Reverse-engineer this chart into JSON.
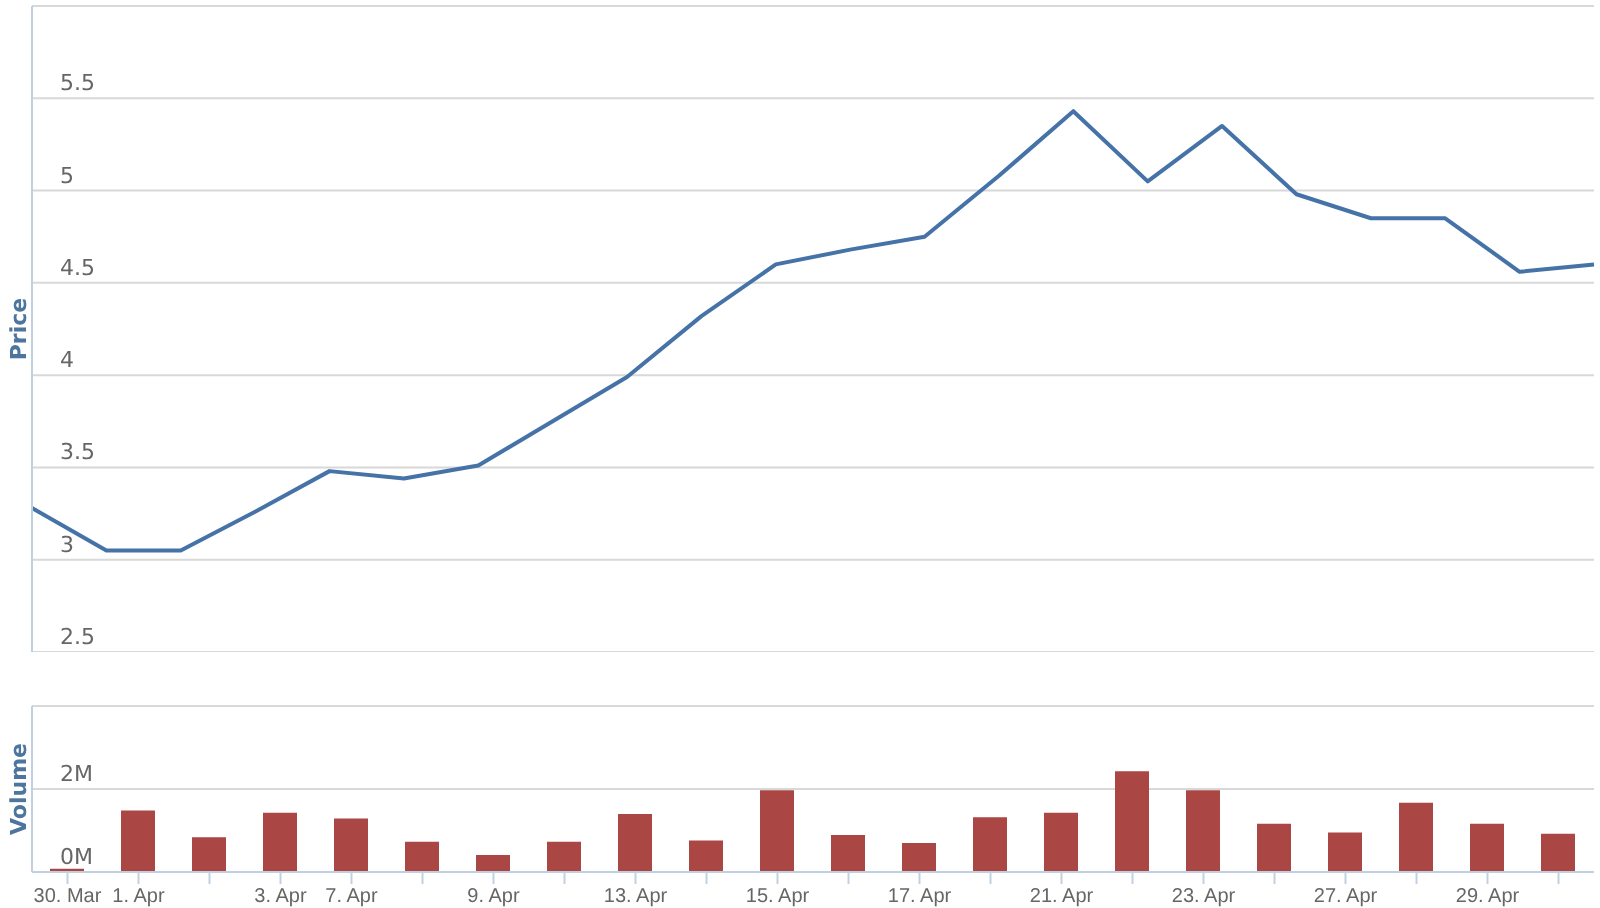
{
  "chart_data": [
    {
      "type": "line",
      "ylabel": "Price",
      "categories": [
        null,
        null,
        null,
        null,
        null,
        null,
        null,
        null,
        null,
        null,
        null,
        null,
        null,
        null,
        null,
        null,
        null,
        null,
        null,
        null,
        null,
        null
      ],
      "series": [
        {
          "color": "#4572a7",
          "values": [
            3.28,
            3.05,
            3.05,
            3.26,
            3.48,
            3.44,
            3.51,
            3.75,
            3.99,
            4.32,
            4.6,
            4.68,
            4.75,
            5.08,
            5.43,
            5.05,
            5.35,
            4.98,
            4.85,
            4.85,
            4.56,
            4.6
          ]
        }
      ],
      "ylim": [
        2.5,
        6
      ],
      "yticks": [
        2.5,
        3,
        3.5,
        4,
        4.5,
        5,
        5.5,
        {
          "value": 6,
          "label": null
        }
      ],
      "grid": "y",
      "tick_labels": "y",
      "legend": false,
      "marker": "none",
      "line_style": "solid"
    },
    {
      "type": "bar",
      "ylabel": "Volume",
      "categories": [
        "30. Mar",
        "1. Apr",
        null,
        "3. Apr",
        "7. Apr",
        null,
        "9. Apr",
        null,
        "13. Apr",
        null,
        "15. Apr",
        null,
        "17. Apr",
        null,
        "21. Apr",
        null,
        "23. Apr",
        null,
        "27. Apr",
        null,
        "29. Apr",
        null
      ],
      "series": [
        {
          "color": "#aa4643",
          "values": [
            0.08,
            1.48,
            0.84,
            1.43,
            1.29,
            0.73,
            0.41,
            0.73,
            1.4,
            0.76,
            1.97,
            0.89,
            0.7,
            1.32,
            1.43,
            2.43,
            1.97,
            1.16,
            0.95,
            1.67,
            1.16,
            0.92
          ]
        }
      ],
      "ylim": [
        0,
        4
      ],
      "yticks": [
        {
          "value": 0,
          "label": "0M"
        },
        {
          "value": 2,
          "label": "2M"
        },
        {
          "value": 4,
          "label": null
        }
      ],
      "grid": "y",
      "legend": false
    }
  ]
}
